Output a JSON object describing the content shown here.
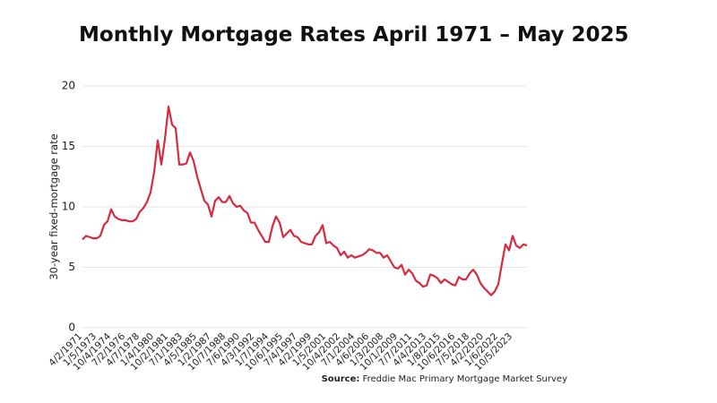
{
  "chart_data": {
    "type": "line",
    "title": "Monthly Mortgage Rates April 1971 – May 2025",
    "y_label": "30-year fixed-mortgage rate",
    "source_label": "Source:",
    "source": "Freddie Mac Primary Mortgage Market Survey",
    "categories": [
      "4/2/1971",
      null,
      null,
      null,
      "1/5/1973",
      null,
      null,
      null,
      "10/4/1974",
      null,
      null,
      null,
      "7/2/1976",
      null,
      null,
      null,
      "4/7/1978",
      null,
      null,
      null,
      "1/4/1980",
      null,
      null,
      null,
      "10/2/1981",
      null,
      null,
      null,
      "7/1/1983",
      null,
      null,
      null,
      "4/5/1985",
      null,
      null,
      null,
      "1/2/1987",
      null,
      null,
      null,
      "10/7/1988",
      null,
      null,
      null,
      "7/6/1990",
      null,
      null,
      null,
      "4/3/1992",
      null,
      null,
      null,
      "1/7/1994",
      null,
      null,
      null,
      "10/6/1995",
      null,
      null,
      null,
      "7/4/1997",
      null,
      null,
      null,
      "4/2/1999",
      null,
      null,
      null,
      "1/5/2001",
      null,
      null,
      null,
      "10/4/2002",
      null,
      null,
      null,
      "7/1/2004",
      null,
      null,
      null,
      "4/6/2006",
      null,
      null,
      null,
      "1/3/2008",
      null,
      null,
      null,
      "10/1/2009",
      null,
      null,
      null,
      "7/7/2011",
      null,
      null,
      null,
      "4/4/2013",
      null,
      null,
      null,
      "1/8/2015",
      null,
      null,
      null,
      "10/6/2016",
      null,
      null,
      null,
      "7/5/2018",
      null,
      null,
      null,
      "4/2/2020",
      null,
      null,
      null,
      "1/6/2022",
      null,
      null,
      null,
      "10/5/2023",
      null,
      null,
      null,
      null
    ],
    "series": [
      {
        "name": "30-year fixed-mortgage rate",
        "color": "#d62b3f",
        "values": [
          7.3,
          7.6,
          7.5,
          7.4,
          7.4,
          7.6,
          8.5,
          8.8,
          9.8,
          9.2,
          9.0,
          8.9,
          8.9,
          8.8,
          8.8,
          9.0,
          9.6,
          9.9,
          10.4,
          11.2,
          12.9,
          15.5,
          13.5,
          15.6,
          18.3,
          16.8,
          16.5,
          13.5,
          13.5,
          13.6,
          14.5,
          13.8,
          12.5,
          11.5,
          10.5,
          10.2,
          9.2,
          10.5,
          10.8,
          10.4,
          10.4,
          10.9,
          10.3,
          10.0,
          10.1,
          9.7,
          9.5,
          8.7,
          8.7,
          8.1,
          7.6,
          7.1,
          7.1,
          8.4,
          9.2,
          8.7,
          7.5,
          7.8,
          8.1,
          7.6,
          7.5,
          7.1,
          7.0,
          6.9,
          6.9,
          7.6,
          7.9,
          8.5,
          7.0,
          7.1,
          6.8,
          6.6,
          6.0,
          6.3,
          5.8,
          6.0,
          5.8,
          5.9,
          6.0,
          6.2,
          6.5,
          6.4,
          6.2,
          6.2,
          5.8,
          6.0,
          5.5,
          5.0,
          4.9,
          5.2,
          4.4,
          4.8,
          4.5,
          3.9,
          3.7,
          3.4,
          3.5,
          4.4,
          4.3,
          4.1,
          3.7,
          4.0,
          3.8,
          3.6,
          3.5,
          4.2,
          4.0,
          4.0,
          4.5,
          4.8,
          4.4,
          3.7,
          3.3,
          3.0,
          2.7,
          3.0,
          3.6,
          5.3,
          6.9,
          6.4,
          7.6,
          6.8,
          6.6,
          6.9,
          6.8
        ]
      }
    ],
    "ylim": [
      0,
      20
    ],
    "yticks": [
      0,
      5,
      10,
      15,
      20
    ],
    "grid": true
  }
}
